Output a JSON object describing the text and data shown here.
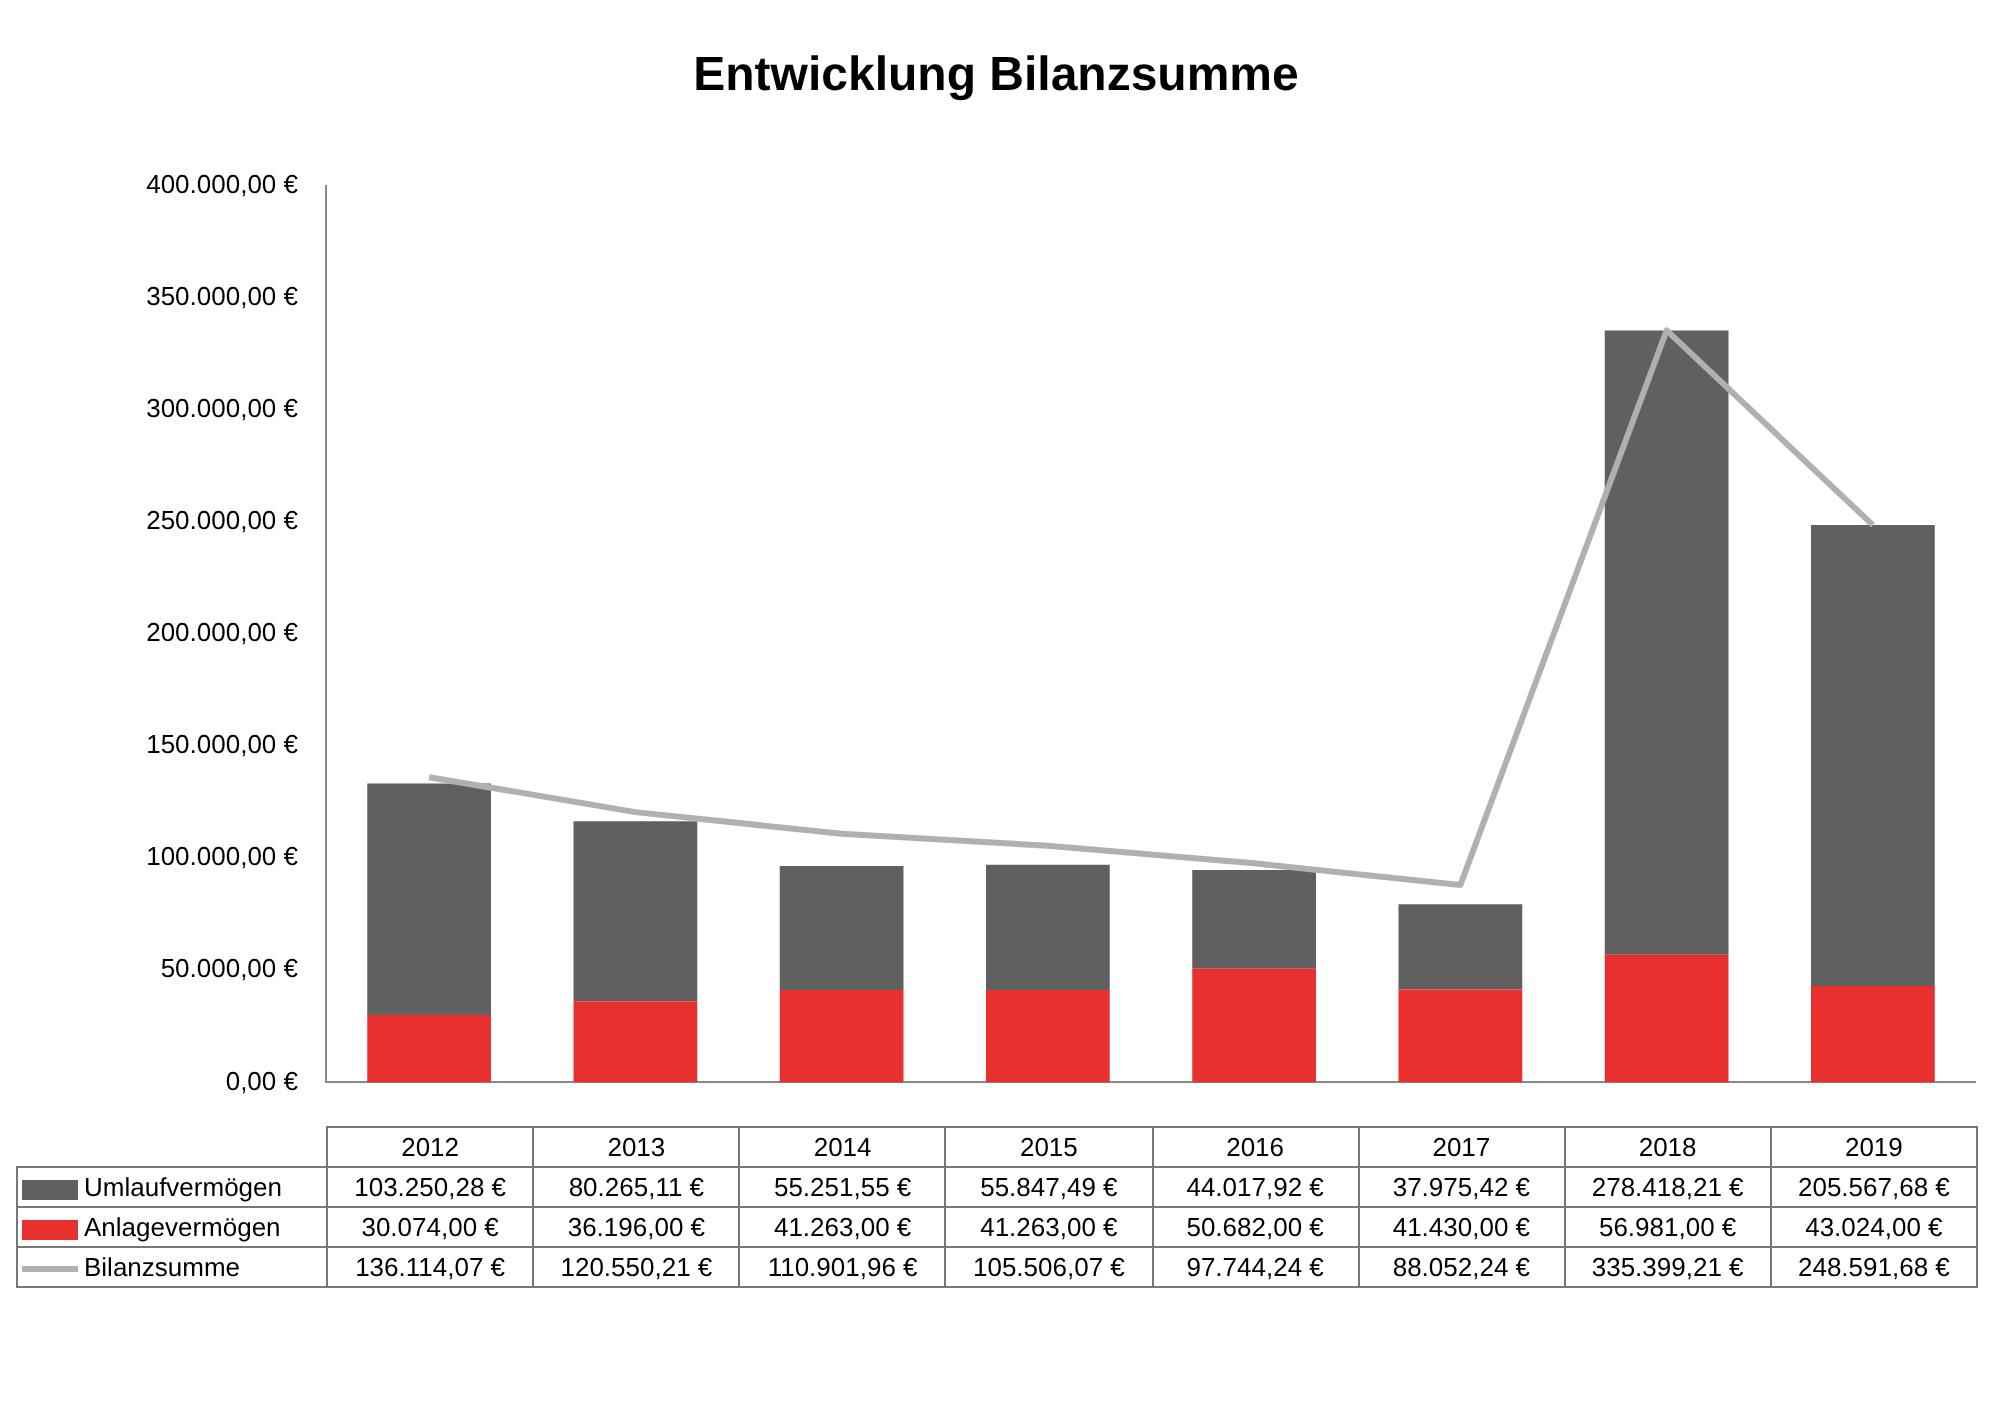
{
  "chart_data": {
    "type": "bar",
    "title": "Entwicklung Bilanzsumme",
    "stacked": true,
    "grid": false,
    "legend": "bottom",
    "marker": "none",
    "categories": [
      "2012",
      "2013",
      "2014",
      "2015",
      "2016",
      "2017",
      "2018",
      "2019"
    ],
    "ylim": [
      0,
      400000
    ],
    "yticks": [
      {
        "value": 0,
        "label": "0,00 €"
      },
      {
        "value": 50000,
        "label": "50.000,00 €"
      },
      {
        "value": 100000,
        "label": "100.000,00 €"
      },
      {
        "value": 150000,
        "label": "150.000,00 €"
      },
      {
        "value": 200000,
        "label": "200.000,00 €"
      },
      {
        "value": 250000,
        "label": "250.000,00 €"
      },
      {
        "value": 300000,
        "label": "300.000,00 €"
      },
      {
        "value": 350000,
        "label": "350.000,00 €"
      },
      {
        "value": 400000,
        "label": "400.000,00 €"
      }
    ],
    "series": [
      {
        "name": "Anlagevermögen",
        "color": "#e8302f",
        "values": [
          30074.0,
          36196.0,
          41263.0,
          41263.0,
          50682.0,
          41430.0,
          56981.0,
          43024.0
        ],
        "value_labels": [
          "30.074,00 €",
          "36.196,00 €",
          "41.263,00 €",
          "41.263,00 €",
          "50.682,00 €",
          "41.430,00 €",
          "56.981,00 €",
          "43.024,00 €"
        ]
      },
      {
        "name": "Umlaufvermögen",
        "color": "#606060",
        "values": [
          103250.28,
          80265.11,
          55251.55,
          55847.49,
          44017.92,
          37975.42,
          278418.21,
          205567.68
        ],
        "value_labels": [
          "103.250,28 €",
          "80.265,11 €",
          "55.251,55 €",
          "55.847,49 €",
          "44.017,92 €",
          "37.975,42 €",
          "278.418,21 €",
          "205.567,68 €"
        ]
      },
      {
        "name": "Bilanzsumme",
        "type": "line",
        "color": "#b0b0b0",
        "line_style": "solid",
        "values": [
          136114.07,
          120550.21,
          110901.96,
          105506.07,
          97744.24,
          88052.24,
          335399.21,
          248591.68
        ],
        "value_labels": [
          "136.114,07 €",
          "120.550,21 €",
          "110.901,96 €",
          "105.506,07 €",
          "97.744,24 €",
          "88.052,24 €",
          "335.399,21 €",
          "248.591,68 €"
        ]
      }
    ]
  }
}
